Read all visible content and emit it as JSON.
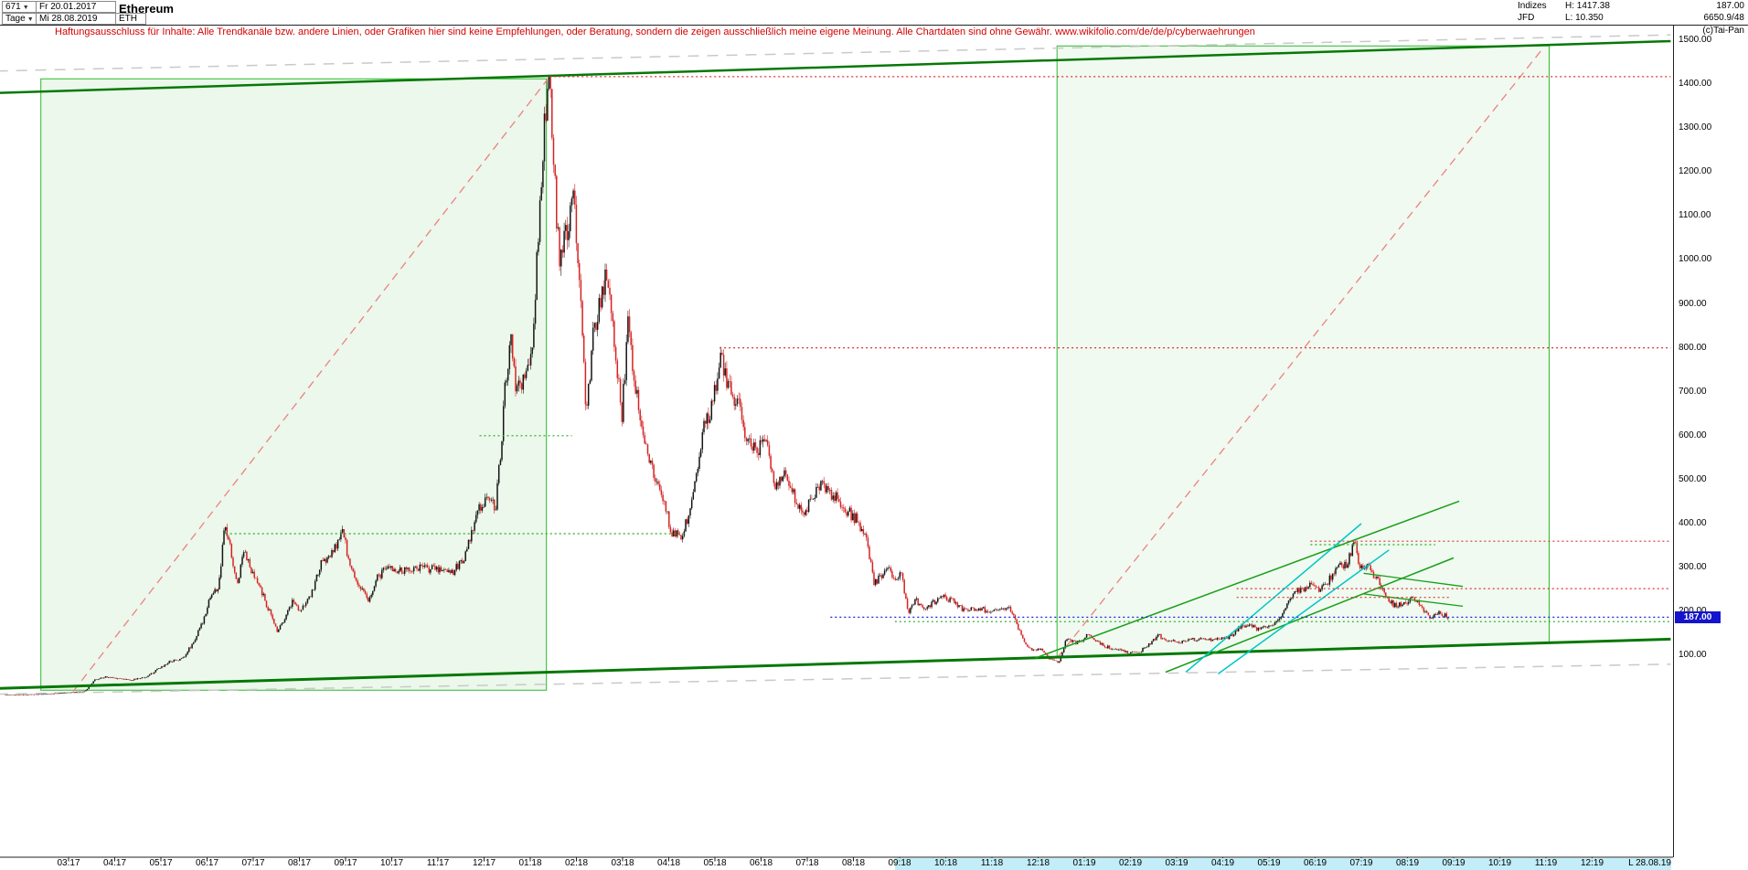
{
  "header": {
    "bars_count": "671",
    "start_date": "Fr 20.01.2017",
    "period": "Tage",
    "end_date": "Mi 28.08.2019",
    "symbol": "ETH",
    "title": "Ethereum",
    "indices_label": "Indizes",
    "high_label": "H: 1417.38",
    "feed_label": "JFD",
    "low_label": "L: 10.350",
    "last_price": "187.00",
    "volume_info": "6650.9/48",
    "copyright": "(c)Tai-Pan"
  },
  "disclaimer": "Haftungsausschluss für Inhalte: Alle Trendkanäle bzw. andere Linien, oder Grafiken hier sind keine Empfehlungen, oder Beratung, sondern die zeigen ausschließlich meine eigene Meinung. Alle Chartdaten sind ohne Gewähr.   www.wikifolio.com/de/de/p/cyberwaehrungen",
  "price_axis": {
    "badge": "187.00",
    "labels": [
      "1500.00",
      "1400.00",
      "1300.00",
      "1200.00",
      "1100.00",
      "1000.00",
      "900.00",
      "800.00",
      "700.00",
      "600.00",
      "500.00",
      "400.00",
      "300.00",
      "200.00",
      "100.00"
    ]
  },
  "time_axis": {
    "labels": [
      "03:17",
      "04:17",
      "05:17",
      "06:17",
      "07:17",
      "08:17",
      "09:17",
      "10:17",
      "11:17",
      "12:17",
      "01:18",
      "02:18",
      "03:18",
      "04:18",
      "05:18",
      "06:18",
      "07:18",
      "08:18",
      "09:18",
      "10:18",
      "11:18",
      "12:18",
      "01:19",
      "02:19",
      "03:19",
      "04:19",
      "05:19",
      "06:19",
      "07:19",
      "08:19",
      "09:19",
      "10:19",
      "11:19",
      "12:19"
    ],
    "last_label": "L 28.08.19",
    "highlight_from_m": 19.9
  },
  "chart_data": {
    "type": "candlestick",
    "title": "Ethereum",
    "symbol": "ETH",
    "timeframe": "Tage (daily)",
    "date_range": "20.01.2017 - 28.08.2019",
    "high": 1417.38,
    "low": 10.35,
    "last": 187.0,
    "y_axis": {
      "min": 0,
      "max": 1500,
      "tick_step": 100
    },
    "x_axis": {
      "unit": "months since 2017-01",
      "first_tick_label": "03:17",
      "last_tick_label": "12:19"
    },
    "anchors": [
      [
        0.63,
        10.4
      ],
      [
        1.0,
        10.7
      ],
      [
        1.5,
        12.5
      ],
      [
        2.0,
        16
      ],
      [
        2.35,
        19
      ],
      [
        2.55,
        44
      ],
      [
        2.8,
        51
      ],
      [
        3.1,
        48
      ],
      [
        3.35,
        44
      ],
      [
        3.7,
        52
      ],
      [
        3.95,
        70
      ],
      [
        4.2,
        87
      ],
      [
        4.45,
        92
      ],
      [
        4.7,
        130
      ],
      [
        4.9,
        175
      ],
      [
        5.05,
        232
      ],
      [
        5.25,
        255
      ],
      [
        5.38,
        400
      ],
      [
        5.5,
        345
      ],
      [
        5.65,
        260
      ],
      [
        5.8,
        350
      ],
      [
        5.95,
        290
      ],
      [
        6.15,
        255
      ],
      [
        6.35,
        200
      ],
      [
        6.52,
        157
      ],
      [
        6.7,
        190
      ],
      [
        6.85,
        225
      ],
      [
        7.0,
        205
      ],
      [
        7.2,
        225
      ],
      [
        7.45,
        305
      ],
      [
        7.7,
        330
      ],
      [
        7.95,
        383
      ],
      [
        8.1,
        300
      ],
      [
        8.3,
        258
      ],
      [
        8.5,
        222
      ],
      [
        8.7,
        280
      ],
      [
        8.95,
        302
      ],
      [
        9.2,
        290
      ],
      [
        9.5,
        300
      ],
      [
        9.8,
        298
      ],
      [
        10.1,
        297
      ],
      [
        10.35,
        292
      ],
      [
        10.6,
        330
      ],
      [
        10.85,
        425
      ],
      [
        11.05,
        460
      ],
      [
        11.25,
        440
      ],
      [
        11.45,
        700
      ],
      [
        11.58,
        820
      ],
      [
        11.7,
        690
      ],
      [
        11.85,
        730
      ],
      [
        12.0,
        755
      ],
      [
        12.15,
        1000
      ],
      [
        12.28,
        1270
      ],
      [
        12.42,
        1397
      ],
      [
        12.52,
        1190
      ],
      [
        12.63,
        1010
      ],
      [
        12.8,
        1060
      ],
      [
        12.95,
        1150
      ],
      [
        13.1,
        915
      ],
      [
        13.22,
        645
      ],
      [
        13.35,
        820
      ],
      [
        13.55,
        930
      ],
      [
        13.68,
        975
      ],
      [
        13.85,
        800
      ],
      [
        13.98,
        645
      ],
      [
        14.12,
        860
      ],
      [
        14.3,
        700
      ],
      [
        14.5,
        585
      ],
      [
        14.7,
        500
      ],
      [
        14.9,
        450
      ],
      [
        15.05,
        383
      ],
      [
        15.25,
        372
      ],
      [
        15.45,
        420
      ],
      [
        15.6,
        520
      ],
      [
        15.75,
        615
      ],
      [
        15.95,
        670
      ],
      [
        16.12,
        785
      ],
      [
        16.3,
        710
      ],
      [
        16.5,
        670
      ],
      [
        16.7,
        590
      ],
      [
        16.9,
        570
      ],
      [
        17.1,
        590
      ],
      [
        17.3,
        485
      ],
      [
        17.5,
        515
      ],
      [
        17.7,
        470
      ],
      [
        17.9,
        425
      ],
      [
        18.1,
        455
      ],
      [
        18.3,
        495
      ],
      [
        18.5,
        470
      ],
      [
        18.7,
        455
      ],
      [
        18.9,
        425
      ],
      [
        19.1,
        405
      ],
      [
        19.3,
        355
      ],
      [
        19.45,
        263
      ],
      [
        19.6,
        280
      ],
      [
        19.75,
        295
      ],
      [
        19.9,
        280
      ],
      [
        20.05,
        283
      ],
      [
        20.18,
        197
      ],
      [
        20.35,
        225
      ],
      [
        20.55,
        200
      ],
      [
        20.75,
        222
      ],
      [
        20.95,
        232
      ],
      [
        21.15,
        225
      ],
      [
        21.4,
        203
      ],
      [
        21.65,
        207
      ],
      [
        21.9,
        202
      ],
      [
        22.1,
        200
      ],
      [
        22.35,
        212
      ],
      [
        22.5,
        183
      ],
      [
        22.65,
        140
      ],
      [
        22.85,
        112
      ],
      [
        23.05,
        115
      ],
      [
        23.25,
        92
      ],
      [
        23.45,
        85
      ],
      [
        23.6,
        138
      ],
      [
        23.8,
        128
      ],
      [
        23.95,
        134
      ],
      [
        24.1,
        150
      ],
      [
        24.3,
        128
      ],
      [
        24.55,
        117
      ],
      [
        24.8,
        112
      ],
      [
        25.0,
        106
      ],
      [
        25.2,
        108
      ],
      [
        25.4,
        125
      ],
      [
        25.6,
        146
      ],
      [
        25.8,
        136
      ],
      [
        26.0,
        131
      ],
      [
        26.25,
        134
      ],
      [
        26.5,
        138
      ],
      [
        26.75,
        136
      ],
      [
        26.95,
        141
      ],
      [
        27.15,
        142
      ],
      [
        27.35,
        164
      ],
      [
        27.55,
        172
      ],
      [
        27.75,
        158
      ],
      [
        27.95,
        163
      ],
      [
        28.15,
        172
      ],
      [
        28.35,
        205
      ],
      [
        28.55,
        248
      ],
      [
        28.75,
        252
      ],
      [
        28.95,
        267
      ],
      [
        29.1,
        248
      ],
      [
        29.3,
        272
      ],
      [
        29.5,
        300
      ],
      [
        29.7,
        310
      ],
      [
        29.85,
        360
      ],
      [
        29.98,
        295
      ],
      [
        30.15,
        302
      ],
      [
        30.35,
        272
      ],
      [
        30.55,
        228
      ],
      [
        30.75,
        212
      ],
      [
        30.9,
        218
      ],
      [
        31.1,
        228
      ],
      [
        31.3,
        212
      ],
      [
        31.5,
        186
      ],
      [
        31.65,
        196
      ],
      [
        31.8,
        190
      ],
      [
        31.9,
        187
      ]
    ],
    "colors": {
      "up_candle": "#141414",
      "down_candle": "#d62222",
      "channel_green": "#067806",
      "box_fill": "rgba(60,190,60,0.10)",
      "box_stroke": "#2eb82e",
      "resistance_red": "#e03030",
      "support_green": "#22aa22",
      "last_price_blue": "#2020ee",
      "cyan": "#00c6c6",
      "gray_dashed": "#c9c9c9"
    },
    "overlays": {
      "boxes": [
        {
          "name": "trend-channel-box-2017",
          "pts": [
            [
              1.4,
              1412
            ],
            [
              12.35,
              1412
            ],
            [
              12.35,
              21
            ],
            [
              1.4,
              21
            ]
          ],
          "fill": "rgba(60,190,60,0.10)",
          "stroke": "#2eb82e"
        },
        {
          "name": "trend-channel-box-2019",
          "pts": [
            [
              23.41,
              1487
            ],
            [
              34.07,
              1487
            ],
            [
              34.07,
              129
            ],
            [
              23.41,
              96
            ]
          ],
          "fill": "rgba(60,190,60,0.08)",
          "stroke": "#2eb82e"
        }
      ],
      "lines_behind": [
        {
          "name": "gray-dashed-upper",
          "from": [
            0.45,
            1430
          ],
          "to": [
            36.7,
            1512
          ],
          "color": "#c9c9c9",
          "width": 1.5,
          "dash": "12,9"
        },
        {
          "name": "gray-dashed-lower",
          "from": [
            0.45,
            12
          ],
          "to": [
            36.7,
            80
          ],
          "color": "#c9c9c9",
          "width": 1.5,
          "dash": "12,9"
        },
        {
          "name": "rally-trendline-2017",
          "from": [
            2.1,
            18
          ],
          "to": [
            12.42,
            1417
          ],
          "color": "#ef8080",
          "width": 1.3,
          "dash": "9,6"
        },
        {
          "name": "rally-trendline-2019",
          "from": [
            23.41,
            94
          ],
          "to": [
            33.9,
            1477
          ],
          "color": "#ef8080",
          "width": 1.3,
          "dash": "9,6"
        }
      ],
      "lines_front": [
        {
          "name": "upper-channel-line",
          "from": [
            0.45,
            1380
          ],
          "to": [
            36.7,
            1498
          ],
          "color": "#067806",
          "width": 2.5
        },
        {
          "name": "lower-support-line",
          "from": [
            0.45,
            25
          ],
          "to": [
            36.7,
            137
          ],
          "color": "#067806",
          "width": 3
        },
        {
          "name": "uptrend-2019-main",
          "from": [
            22.94,
            94
          ],
          "to": [
            32.12,
            451
          ],
          "color": "#1a9e1a",
          "width": 1.5
        },
        {
          "name": "uptrend-2019-lower",
          "from": [
            25.76,
            62
          ],
          "to": [
            32.0,
            322
          ],
          "color": "#1a9e1a",
          "width": 1.5
        },
        {
          "name": "cyan-channel-a",
          "from": [
            26.2,
            62
          ],
          "to": [
            30.0,
            400
          ],
          "color": "#00c6c6",
          "width": 1.5
        },
        {
          "name": "cyan-channel-b",
          "from": [
            26.9,
            58
          ],
          "to": [
            30.6,
            340
          ],
          "color": "#00c6c6",
          "width": 1.5
        },
        {
          "name": "mini-channel-top",
          "from": [
            30.05,
            287
          ],
          "to": [
            32.2,
            257
          ],
          "color": "#1a9e1a",
          "width": 1.3
        },
        {
          "name": "mini-channel-bottom",
          "from": [
            30.05,
            240
          ],
          "to": [
            32.2,
            212
          ],
          "color": "#1a9e1a",
          "width": 1.3
        }
      ],
      "hlines": [
        {
          "name": "resistance-1417",
          "p": 1417,
          "from": 12.42,
          "to": 36.7,
          "color": "#e03030",
          "dash": "2,3",
          "width": 1.2
        },
        {
          "name": "resistance-800",
          "p": 800,
          "from": 16.1,
          "to": 36.7,
          "color": "#e03030",
          "dash": "2,3",
          "width": 1.2
        },
        {
          "name": "resistance-360",
          "p": 360,
          "from": 28.9,
          "to": 36.7,
          "color": "#e03030",
          "dash": "2,3",
          "width": 1.2
        },
        {
          "name": "resistance-252",
          "p": 252,
          "from": 27.3,
          "to": 36.7,
          "color": "#e03030",
          "dash": "2,3",
          "width": 1.2
        },
        {
          "name": "resistance-232",
          "p": 232,
          "from": 27.3,
          "to": 31.9,
          "color": "#e03030",
          "dash": "2,3",
          "width": 1.2
        },
        {
          "name": "support-green-600",
          "p": 600,
          "from": 10.9,
          "to": 12.9,
          "color": "#22aa22",
          "dash": "2,3",
          "width": 1.2
        },
        {
          "name": "support-green-377",
          "p": 377,
          "from": 5.4,
          "to": 15.4,
          "color": "#22aa22",
          "dash": "2,3",
          "width": 1.2
        },
        {
          "name": "support-green-352",
          "p": 352,
          "from": 28.9,
          "to": 31.6,
          "color": "#22aa22",
          "dash": "2,3",
          "width": 1.2
        },
        {
          "name": "support-green-177",
          "p": 177,
          "from": 19.9,
          "to": 36.7,
          "color": "#22aa22",
          "dash": "2,3",
          "width": 1.2
        },
        {
          "name": "last-price-line",
          "p": 187,
          "from": 18.5,
          "to": 36.7,
          "color": "#2020ee",
          "dash": "2,3",
          "width": 1.3
        }
      ]
    }
  }
}
